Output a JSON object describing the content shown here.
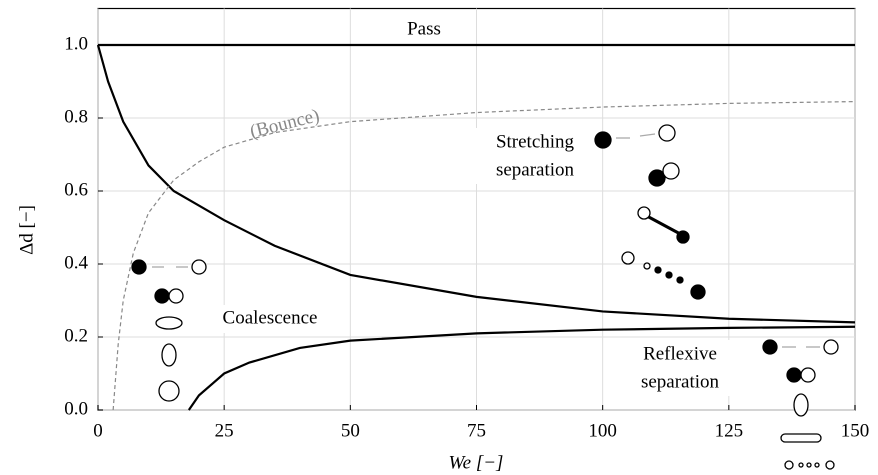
{
  "chart_data": {
    "type": "line",
    "xlabel": "We [−]",
    "ylabel": "Δd [−]",
    "xlim": [
      0,
      150
    ],
    "ylim": [
      0,
      1.1
    ],
    "xticks": [
      0,
      25,
      50,
      75,
      100,
      125,
      150
    ],
    "yticks": [
      {
        "value": 0,
        "label": "0.0"
      },
      {
        "value": 0.2,
        "label": "0.2"
      },
      {
        "value": 0.4,
        "label": "0.4"
      },
      {
        "value": 0.6,
        "label": "0.6"
      },
      {
        "value": 0.8,
        "label": "0.8"
      },
      {
        "value": 1,
        "label": "1.0"
      }
    ],
    "grid": true,
    "series": [
      {
        "color": "#000000",
        "x": [
          0,
          150
        ],
        "values": [
          1,
          1
        ]
      },
      {
        "color": "#000000",
        "x": [
          0,
          2,
          5,
          10,
          15,
          20,
          25,
          35,
          50,
          75,
          100,
          125,
          150
        ],
        "values": [
          1,
          0.9,
          0.79,
          0.67,
          0.6,
          0.56,
          0.52,
          0.45,
          0.37,
          0.31,
          0.27,
          0.25,
          0.24
        ]
      },
      {
        "color": "#000000",
        "x": [
          18,
          20,
          25,
          30,
          40,
          50,
          75,
          100,
          125,
          150
        ],
        "values": [
          0,
          0.04,
          0.1,
          0.13,
          0.17,
          0.19,
          0.21,
          0.22,
          0.225,
          0.228
        ]
      },
      {
        "color": "#888888",
        "dashed": true,
        "x": [
          3,
          4,
          5,
          7,
          10,
          15,
          20,
          25,
          35,
          50,
          75,
          100,
          125,
          150
        ],
        "values": [
          0,
          0.18,
          0.3,
          0.43,
          0.54,
          0.63,
          0.68,
          0.72,
          0.76,
          0.79,
          0.815,
          0.83,
          0.84,
          0.845
        ]
      }
    ],
    "annotations": [
      "Pass",
      "(Bounce)",
      "Stretching",
      "separation",
      "Coalescence",
      "Reflexive",
      "separation"
    ]
  }
}
